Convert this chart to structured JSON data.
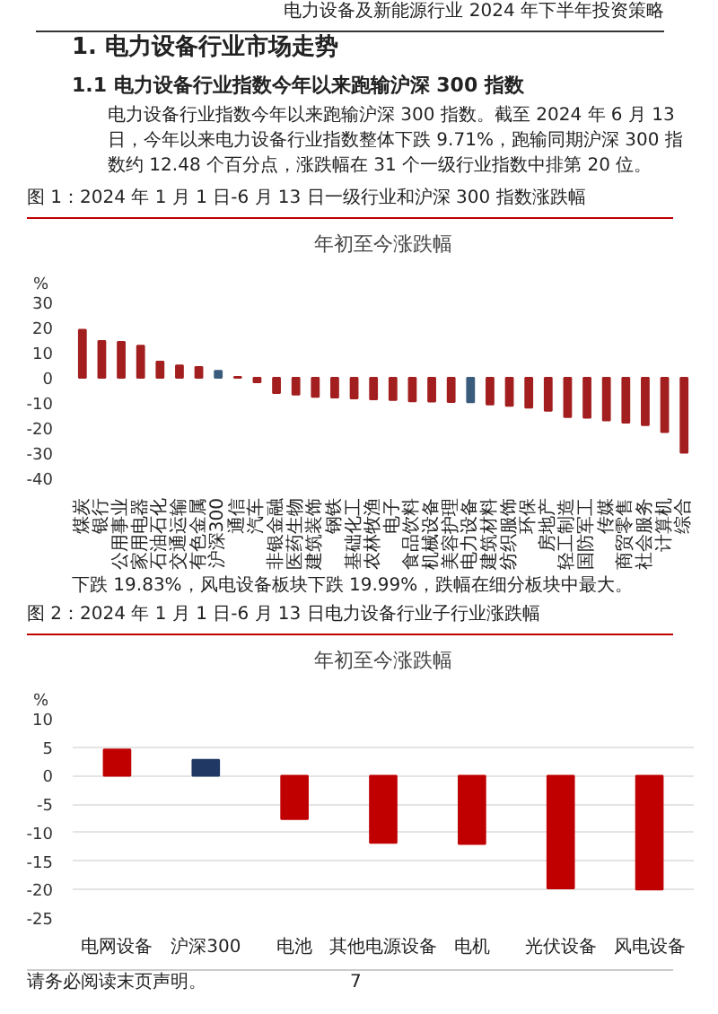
{
  "chart_data": [
    {
      "type": "bar",
      "title": "年初至今涨跌幅",
      "ylabel": "%",
      "categories": [
        "煤炭",
        "银行",
        "公用事业",
        "家用电器",
        "石油石化",
        "交通运输",
        "有色金属",
        "沪深300",
        "通信",
        "汽车",
        "非银金融",
        "医药生物",
        "建筑装饰",
        "钢铁",
        "基础化工",
        "农林牧渔",
        "电子",
        "食品饮料",
        "机械设备",
        "美容护理",
        "电力设备",
        "建筑材料",
        "纺织服饰",
        "环保",
        "房地产",
        "轻工制造",
        "国防军工",
        "传媒",
        "商贸零售",
        "社会服务",
        "计算机",
        "综合"
      ],
      "values": [
        19.1,
        14.6,
        14.3,
        12.8,
        6.4,
        4.9,
        4.3,
        2.8,
        0.4,
        -1.8,
        -6.1,
        -6.7,
        -7.6,
        -7.9,
        -8.2,
        -8.6,
        -8.8,
        -9.4,
        -9.5,
        -9.6,
        -9.7,
        -10.6,
        -11.2,
        -11.9,
        -13.1,
        -15.6,
        -15.9,
        -17.0,
        -17.9,
        -18.8,
        -21.6,
        -29.8
      ],
      "colors": [
        "#a31f1f",
        "#a31f1f",
        "#a31f1f",
        "#a31f1f",
        "#a31f1f",
        "#a31f1f",
        "#a31f1f",
        "#3b5b7d",
        "#a31f1f",
        "#a31f1f",
        "#a31f1f",
        "#a31f1f",
        "#a31f1f",
        "#a31f1f",
        "#a31f1f",
        "#a31f1f",
        "#a31f1f",
        "#a31f1f",
        "#a31f1f",
        "#a31f1f",
        "#3b5b7d",
        "#a31f1f",
        "#a31f1f",
        "#a31f1f",
        "#a31f1f",
        "#a31f1f",
        "#a31f1f",
        "#a31f1f",
        "#a31f1f",
        "#a31f1f",
        "#a31f1f",
        "#a31f1f"
      ],
      "ylim": [
        -40,
        30
      ],
      "yticks": [
        30,
        20,
        10,
        0,
        -10,
        -20,
        -30,
        -40
      ],
      "annotations": [
        "电力设备及新能源行业 2024 年下半年投资策略",
        "1. 电力设备行业市场走势",
        "1.1 电力设备行业指数今年以来跑输沪深 300 指数",
        "电力设备行业指数今年以来跑输沪深 300 指数。截至 2024 年 6 月 13 日，今年以来电力设备行业指数整体下跌 9.71%，跑输同期沪深 300 指数约 12.48 个百分点，涨跌幅在 31 个一级行业指数中排第 20 位。",
        "图 1：2024 年 1 月 1 日-6 月 13 日一级行业和沪深 300 指数涨跌幅"
      ]
    },
    {
      "type": "bar",
      "title": "年初至今涨跌幅",
      "ylabel": "%",
      "categories": [
        "电网设备",
        "沪深300",
        "电池",
        "其他电源设备",
        "电机",
        "光伏设备",
        "风电设备"
      ],
      "values": [
        4.6,
        2.8,
        -7.6,
        -11.8,
        -12.0,
        -19.8,
        -20.0
      ],
      "colors": [
        "#c00000",
        "#1f3864",
        "#c00000",
        "#c00000",
        "#c00000",
        "#c00000",
        "#c00000"
      ],
      "ylim": [
        -25,
        10
      ],
      "yticks": [
        10,
        5,
        0,
        -5,
        -10,
        -15,
        -20,
        -25
      ],
      "grid": "y",
      "annotations": [
        "下跌 19.83%，风电设备板块下跌 19.99%，跌幅在细分板块中最大。",
        "图 2：2024 年 1 月 1 日-6 月 13 日电力设备行业子行业涨跌幅",
        "请务必阅读末页声明。",
        "7"
      ]
    }
  ]
}
